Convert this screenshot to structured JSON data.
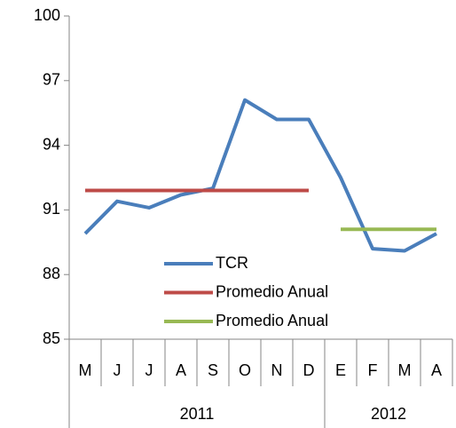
{
  "chart_data": {
    "type": "line",
    "categories": [
      "M",
      "J",
      "J",
      "A",
      "S",
      "O",
      "N",
      "D",
      "E",
      "F",
      "M",
      "A"
    ],
    "groups": [
      {
        "label": "2011",
        "span": 8
      },
      {
        "label": "2012",
        "span": 4
      }
    ],
    "series": [
      {
        "name": "TCR",
        "color": "#4a7ebb",
        "values": [
          89.9,
          91.4,
          91.1,
          91.7,
          92.0,
          96.1,
          95.2,
          95.2,
          92.5,
          89.2,
          89.1,
          89.9
        ]
      },
      {
        "name": "Promedio Anual",
        "color": "#be4b48",
        "values": [
          91.9,
          91.9,
          91.9,
          91.9,
          91.9,
          91.9,
          91.9,
          91.9,
          null,
          null,
          null,
          null
        ]
      },
      {
        "name": "Promedio Anual",
        "color": "#98b954",
        "values": [
          null,
          null,
          null,
          null,
          null,
          null,
          null,
          null,
          90.1,
          90.1,
          90.1,
          90.1
        ]
      }
    ],
    "ylim": [
      85,
      100
    ],
    "yticks": [
      85,
      88,
      91,
      94,
      97,
      100
    ],
    "grid": false,
    "legend": "inside"
  }
}
